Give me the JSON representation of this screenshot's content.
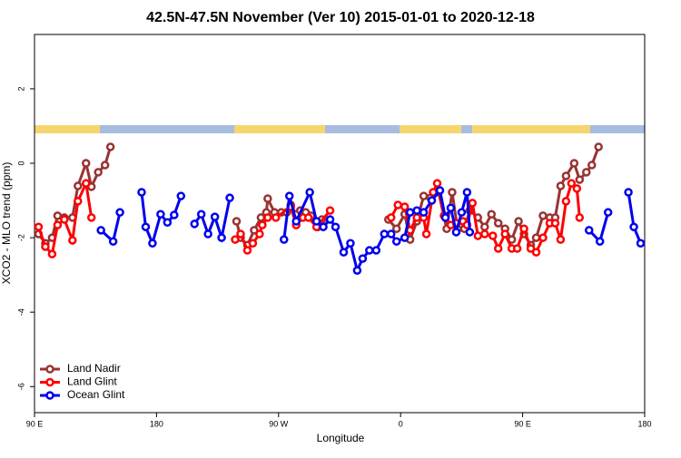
{
  "chart_data": {
    "type": "line",
    "title": "42.5N-47.5N November (Ver 10)   2015-01-01 to 2020-12-18",
    "x_label": "Longitude",
    "y_label": "XCO2 - MLO trend (ppm)",
    "xlim": [
      90,
      540
    ],
    "ylim": [
      -6.7,
      3.46
    ],
    "xticks": [
      {
        "value": 90,
        "label": "90 E"
      },
      {
        "value": 180,
        "label": "180"
      },
      {
        "value": 270,
        "label": "90 W"
      },
      {
        "value": 360,
        "label": "0"
      },
      {
        "value": 450,
        "label": "90 E"
      },
      {
        "value": 540,
        "label": "180"
      }
    ],
    "yticks": [
      -6,
      -4,
      -2,
      0,
      2
    ],
    "legend": "bottom-left",
    "series": [
      {
        "name": "Land Nadir",
        "color": "#993333",
        "x": [
          93,
          98,
          103,
          107,
          112,
          118,
          122,
          128,
          132,
          137,
          142,
          146,
          null,
          239,
          242,
          247,
          252,
          257,
          261,
          262,
          267,
          272,
          276,
          279,
          283,
          286,
          290,
          294,
          299,
          302,
          null,
          351,
          357,
          363,
          367,
          372,
          377,
          382,
          388,
          394,
          398,
          402,
          407,
          411,
          417,
          422,
          427,
          432,
          437,
          442,
          447,
          451,
          456,
          460,
          465,
          470,
          474,
          478,
          482,
          488,
          492,
          497,
          501,
          506
        ],
        "values": [
          -1.9,
          -2.15,
          -2.0,
          -1.41,
          -1.46,
          -1.46,
          -0.61,
          0,
          -0.63,
          -0.24,
          -0.05,
          0.44,
          null,
          -1.56,
          -2.0,
          -2.2,
          -1.8,
          -1.46,
          -1.32,
          -0.95,
          -1.32,
          -1.32,
          -1.32,
          -1.12,
          -1.37,
          -1.27,
          -1.32,
          -1.41,
          -1.71,
          -1.51,
          null,
          -1.51,
          -1.76,
          -1.37,
          -2.05,
          -1.56,
          -0.88,
          -0.93,
          -0.78,
          -1.76,
          -0.78,
          -1.76,
          -1.76,
          -1.27,
          -1.46,
          -1.71,
          -1.37,
          -1.61,
          -1.76,
          -2.05,
          -1.56,
          -1.9,
          -2.2,
          -2.0,
          -1.41,
          -1.46,
          -1.46,
          -0.61,
          -0.34,
          0,
          -0.44,
          -0.24,
          -0.05,
          0.44
        ]
      },
      {
        "name": "Land Glint",
        "color": "#ff0000",
        "x": [
          93,
          98,
          103,
          107,
          112,
          118,
          122,
          128,
          132,
          null,
          238,
          242,
          247,
          251,
          256,
          258,
          262,
          268,
          279,
          283,
          288,
          292,
          298,
          308,
          null,
          353,
          358,
          363,
          367,
          372,
          377,
          379,
          384,
          387,
          392,
          397,
          401,
          406,
          409,
          413,
          417,
          422,
          428,
          432,
          437,
          442,
          446,
          451,
          456,
          460,
          465,
          470,
          474,
          478,
          482,
          486,
          490,
          492
        ],
        "values": [
          -1.71,
          -2.24,
          -2.44,
          -1.66,
          -1.51,
          -2.07,
          -1.02,
          -0.54,
          -1.46,
          null,
          -2.05,
          -1.9,
          -2.34,
          -2.15,
          -1.9,
          -1.66,
          -1.46,
          -1.46,
          -1.17,
          -1.66,
          -1.46,
          -1.46,
          -1.71,
          -1.27,
          null,
          -1.46,
          -1.12,
          -1.17,
          -1.8,
          -1.46,
          -1.46,
          -1.9,
          -0.78,
          -0.54,
          -1.41,
          -1.66,
          -1.61,
          -1.56,
          -1.66,
          -1.07,
          -1.95,
          -1.9,
          -1.95,
          -2.29,
          -1.9,
          -2.29,
          -2.29,
          -1.76,
          -2.29,
          -2.39,
          -2.0,
          -1.61,
          -1.61,
          -2.05,
          -1.02,
          -0.54,
          -0.68,
          -1.46
        ]
      },
      {
        "name": "Ocean Glint",
        "color": "#0000ee",
        "x": [
          139,
          148,
          153,
          null,
          169,
          172,
          177,
          183,
          188,
          193,
          198,
          null,
          208,
          213,
          218,
          223,
          228,
          234,
          null,
          274,
          278,
          283,
          293,
          298,
          303,
          308,
          312,
          318,
          323,
          328,
          332,
          337,
          342,
          348,
          353,
          357,
          363,
          367,
          372,
          377,
          383,
          389,
          393,
          397,
          401,
          405,
          409,
          411,
          null,
          499,
          507,
          513,
          null,
          528,
          532,
          537
        ],
        "values": [
          -1.8,
          -2.1,
          -1.32,
          null,
          -0.78,
          -1.71,
          -2.15,
          -1.37,
          -1.59,
          -1.39,
          -0.88,
          null,
          -1.63,
          -1.37,
          -1.9,
          -1.44,
          -2.0,
          -0.93,
          null,
          -2.05,
          -0.88,
          -1.56,
          -0.78,
          -1.56,
          -1.71,
          -1.51,
          -1.71,
          -2.39,
          -2.15,
          -2.88,
          -2.56,
          -2.34,
          -2.34,
          -1.9,
          -1.9,
          -2.1,
          -2.0,
          -1.32,
          -1.27,
          -1.32,
          -1.0,
          -0.73,
          -1.46,
          -1.2,
          -1.85,
          -1.32,
          -0.78,
          -1.85,
          null,
          -1.8,
          -2.1,
          -1.32,
          null,
          -0.78,
          -1.71,
          -2.15
        ]
      }
    ]
  }
}
